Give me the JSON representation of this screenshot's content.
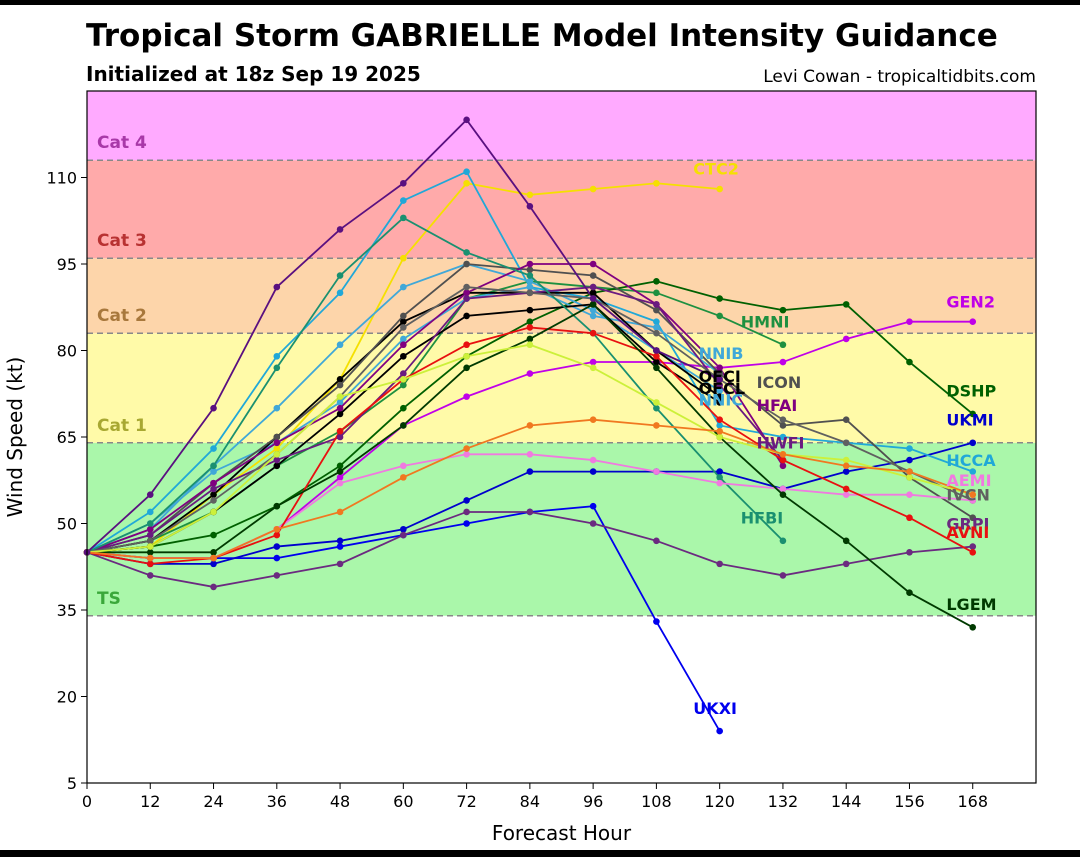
{
  "header": {
    "title": "Tropical Storm GABRIELLE Model Intensity Guidance",
    "subtitle": "Initialized at 18z Sep 19 2025",
    "credit": "Levi Cowan - tropicaltidbits.com"
  },
  "chart_data": {
    "type": "line",
    "title": "Tropical Storm GABRIELLE Model Intensity Guidance",
    "subtitle": "Initialized at 18z Sep 19 2025",
    "xlabel": "Forecast Hour",
    "ylabel": "Wind Speed (kt)",
    "xlim": [
      0,
      180
    ],
    "ylim": [
      5,
      125
    ],
    "xticks": [
      0,
      12,
      24,
      36,
      48,
      60,
      72,
      84,
      96,
      108,
      120,
      132,
      144,
      156,
      168
    ],
    "yticks": [
      5,
      20,
      35,
      50,
      65,
      80,
      95,
      110
    ],
    "categories": [
      {
        "name": "TS",
        "from": 34,
        "to": 64,
        "color": "#aaf7aa",
        "text_color": "#3aa83a"
      },
      {
        "name": "Cat 1",
        "from": 64,
        "to": 83,
        "color": "#fffaa8",
        "text_color": "#a8a832"
      },
      {
        "name": "Cat 2",
        "from": 83,
        "to": 96,
        "color": "#fdd5aa",
        "text_color": "#a8783c"
      },
      {
        "name": "Cat 3",
        "from": 96,
        "to": 113,
        "color": "#ffaaaa",
        "text_color": "#b83232"
      },
      {
        "name": "Cat 4",
        "from": 113,
        "to": 125,
        "color": "#ffaaff",
        "text_color": "#a838a8"
      }
    ],
    "series": [
      {
        "name": "UKXI",
        "color": "#0000ee",
        "x": [
          0,
          12,
          24,
          36,
          48,
          60,
          72,
          84,
          96,
          108,
          120
        ],
        "y": [
          45,
          44,
          44,
          44,
          46,
          48,
          50,
          52,
          53,
          33,
          14
        ],
        "label_x": 115,
        "label_y": 17
      },
      {
        "name": "CTC2",
        "color": "#f5e000",
        "x": [
          0,
          12,
          24,
          36,
          48,
          60,
          72,
          84,
          96,
          108,
          120
        ],
        "y": [
          45,
          46,
          55,
          63,
          75,
          96,
          109,
          107,
          108,
          109,
          108
        ],
        "label_x": 115,
        "label_y": 110.5
      },
      {
        "name": "GEN2",
        "color": "#c000e8",
        "x": [
          0,
          12,
          24,
          36,
          48,
          60,
          72,
          84,
          96,
          108,
          120,
          132,
          144,
          156,
          168
        ],
        "y": [
          45,
          44,
          44,
          49,
          58,
          67,
          72,
          76,
          78,
          78,
          77,
          78,
          82,
          85,
          85
        ],
        "label_x": 163,
        "label_y": 87.5
      },
      {
        "name": "HMNI",
        "color": "#1e9040",
        "x": [
          0,
          12,
          24,
          36,
          48,
          60,
          72,
          84,
          96,
          108,
          120,
          132
        ],
        "y": [
          45,
          47,
          52,
          60,
          66,
          74,
          89,
          92,
          91,
          90,
          86,
          81
        ],
        "label_x": 124,
        "label_y": 84
      },
      {
        "name": "DSHP",
        "color": "#006000",
        "x": [
          0,
          12,
          24,
          36,
          48,
          60,
          72,
          84,
          96,
          108,
          120,
          132,
          144,
          156,
          168
        ],
        "y": [
          45,
          46,
          48,
          53,
          60,
          70,
          79,
          85,
          90,
          92,
          89,
          87,
          88,
          78,
          69
        ],
        "label_x": 163,
        "label_y": 72
      },
      {
        "name": "UKMI",
        "color": "#0000cc",
        "x": [
          0,
          12,
          24,
          36,
          48,
          60,
          72,
          84,
          96,
          108,
          120,
          132,
          144,
          156,
          168
        ],
        "y": [
          45,
          43,
          43,
          46,
          47,
          49,
          54,
          59,
          59,
          59,
          59,
          56,
          59,
          61,
          64
        ],
        "label_x": 163,
        "label_y": 67
      },
      {
        "name": "HCCA",
        "color": "#20a8d8",
        "x": [
          0,
          12,
          24,
          36,
          48,
          60,
          72,
          84,
          96,
          108,
          120,
          132,
          144,
          156,
          168
        ],
        "y": [
          45,
          52,
          63,
          79,
          90,
          106,
          111,
          91,
          89,
          85,
          67,
          65,
          64,
          63,
          59
        ],
        "label_x": 163,
        "label_y": 60
      },
      {
        "name": "NNIB",
        "color": "#40a8d8",
        "x": [
          0,
          12,
          24,
          36,
          48,
          60,
          72,
          84,
          96,
          108,
          120
        ],
        "y": [
          45,
          50,
          59,
          64,
          71,
          82,
          89,
          91,
          86,
          84,
          76
        ],
        "label_x": 116,
        "label_y": 78.5
      },
      {
        "name": "NNIC",
        "color": "#40a8d8",
        "x": [
          0,
          12,
          24,
          36,
          48,
          60,
          72,
          84,
          96,
          108,
          120
        ],
        "y": [
          45,
          49,
          60,
          70,
          81,
          91,
          95,
          92,
          87,
          80,
          73
        ],
        "label_x": 116,
        "label_y": 70.5
      },
      {
        "name": "OFCI",
        "color": "#000000",
        "x": [
          0,
          12,
          24,
          36,
          48,
          60,
          72,
          84,
          96,
          108,
          120
        ],
        "y": [
          45,
          47,
          55,
          65,
          75,
          85,
          90,
          90,
          90,
          80,
          72
        ],
        "label_x": 116,
        "label_y": 74.5
      },
      {
        "name": "OFCL",
        "color": "#000000",
        "x": [
          0,
          12,
          24,
          36,
          48,
          60,
          72,
          84,
          96,
          108,
          120
        ],
        "y": [
          45,
          46,
          52,
          60,
          69,
          79,
          86,
          87,
          88,
          78,
          71
        ],
        "label_x": 116,
        "label_y": 72.5
      },
      {
        "name": "ICON",
        "color": "#505050",
        "x": [
          0,
          12,
          24,
          36,
          48,
          60,
          72,
          84,
          96,
          108,
          120,
          132,
          144,
          156,
          168
        ],
        "y": [
          45,
          48,
          57,
          65,
          74,
          86,
          95,
          94,
          93,
          87,
          76,
          67,
          68,
          58,
          51
        ],
        "label_x": 127,
        "label_y": 73.5
      },
      {
        "name": "HFAI",
        "color": "#800080",
        "x": [
          0,
          12,
          24,
          36,
          48,
          60,
          72,
          84,
          96,
          108,
          120,
          132
        ],
        "y": [
          45,
          49,
          57,
          64,
          70,
          81,
          90,
          95,
          95,
          88,
          77,
          60
        ],
        "label_x": 127,
        "label_y": 69.5
      },
      {
        "name": "HWFI",
        "color": "#6a1a80",
        "x": [
          0,
          12,
          24,
          36,
          48,
          60,
          72,
          84,
          96,
          108,
          120,
          132
        ],
        "y": [
          45,
          48,
          56,
          61,
          65,
          76,
          89,
          90,
          91,
          88,
          74,
          61
        ],
        "label_x": 127,
        "label_y": 63
      },
      {
        "name": "HFBI",
        "color": "#1a9070",
        "x": [
          0,
          12,
          24,
          36,
          48,
          60,
          72,
          84,
          96,
          108,
          120,
          132
        ],
        "y": [
          45,
          50,
          60,
          77,
          93,
          103,
          97,
          93,
          83,
          70,
          58,
          47
        ],
        "label_x": 124,
        "label_y": 50
      },
      {
        "name": "IVCN",
        "color": "#606060",
        "x": [
          0,
          12,
          24,
          36,
          48,
          60,
          72,
          84,
          96,
          108,
          120,
          132,
          144,
          156,
          168
        ],
        "y": [
          45,
          47,
          54,
          62,
          72,
          84,
          91,
          90,
          89,
          83,
          75,
          68,
          64,
          59,
          54
        ],
        "label_x": 163,
        "label_y": 54
      },
      {
        "name": "AEMI",
        "color": "#f07ae0",
        "x": [
          0,
          12,
          24,
          36,
          48,
          60,
          72,
          84,
          96,
          108,
          120,
          132,
          144,
          156,
          168
        ],
        "y": [
          45,
          44,
          44,
          49,
          57,
          60,
          62,
          62,
          61,
          59,
          57,
          56,
          55,
          55,
          54
        ],
        "label_x": 163,
        "label_y": 56.5
      },
      {
        "name": "GRPI",
        "color": "#6b2a80",
        "x": [
          0,
          12,
          24,
          36,
          48,
          60,
          72,
          84,
          96,
          108,
          120,
          132,
          144,
          156,
          168
        ],
        "y": [
          45,
          41,
          39,
          41,
          43,
          48,
          52,
          52,
          50,
          47,
          43,
          41,
          43,
          45,
          46
        ],
        "label_x": 163,
        "label_y": 49
      },
      {
        "name": "AVNI",
        "color": "#e81010",
        "x": [
          0,
          12,
          24,
          36,
          48,
          60,
          72,
          84,
          96,
          108,
          120,
          132,
          144,
          156,
          168
        ],
        "y": [
          45,
          43,
          44,
          48,
          66,
          75,
          81,
          84,
          83,
          79,
          68,
          61,
          56,
          51,
          45
        ],
        "label_x": 163,
        "label_y": 47.5
      },
      {
        "name": "LGEM",
        "color": "#003a00",
        "x": [
          0,
          12,
          24,
          36,
          48,
          60,
          72,
          84,
          96,
          108,
          120,
          132,
          144,
          156,
          168
        ],
        "y": [
          45,
          45,
          45,
          53,
          59,
          67,
          77,
          82,
          88,
          77,
          65,
          55,
          47,
          38,
          32
        ],
        "label_x": 163,
        "label_y": 35
      },
      {
        "name": "",
        "color": "#ccf03a",
        "x": [
          0,
          12,
          24,
          36,
          48,
          60,
          72,
          84,
          96,
          108,
          120,
          132,
          144,
          156,
          168
        ],
        "y": [
          45,
          46,
          52,
          62,
          72,
          75,
          79,
          81,
          77,
          71,
          65,
          62,
          61,
          58,
          55
        ]
      },
      {
        "name": "",
        "color": "#f07820",
        "x": [
          0,
          12,
          24,
          36,
          48,
          60,
          72,
          84,
          96,
          108,
          120,
          132,
          144,
          156,
          168
        ],
        "y": [
          45,
          44,
          44,
          49,
          52,
          58,
          63,
          67,
          68,
          67,
          66,
          62,
          60,
          59,
          55
        ]
      },
      {
        "name": "",
        "color": "#5a1080",
        "x": [
          0,
          12,
          24,
          36,
          48,
          60,
          72,
          84,
          96,
          108,
          120
        ],
        "y": [
          45,
          55,
          70,
          91,
          101,
          109,
          120,
          105,
          89,
          80,
          75
        ]
      }
    ]
  }
}
